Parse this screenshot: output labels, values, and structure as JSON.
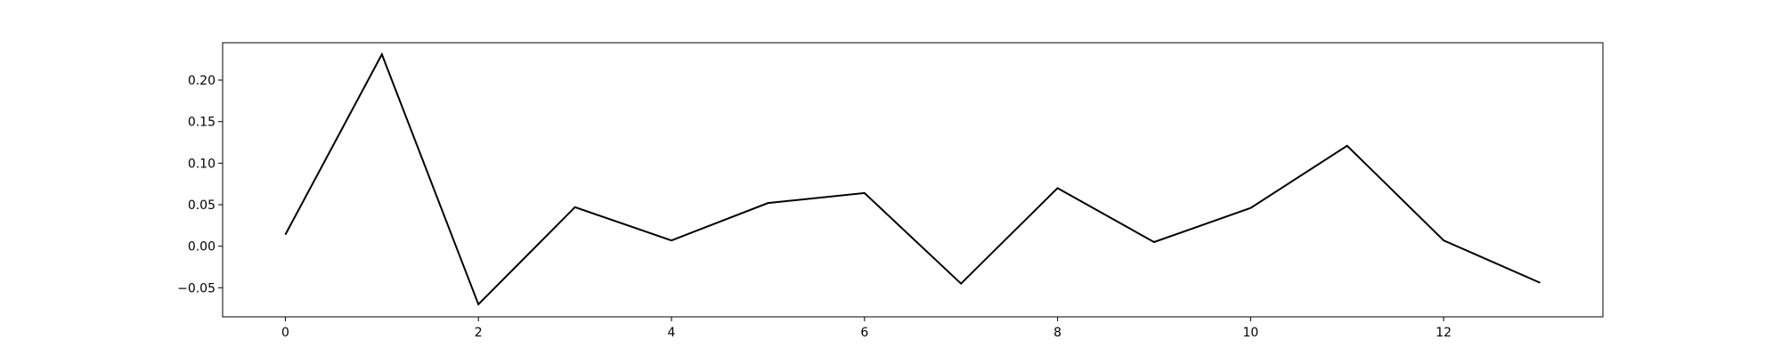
{
  "chart_data": {
    "type": "line",
    "title": "",
    "xlabel": "",
    "ylabel": "",
    "xlim": [
      -0.65,
      13.65
    ],
    "ylim": [
      -0.085,
      0.245
    ],
    "x_ticks": [
      0,
      2,
      4,
      6,
      8,
      10,
      12
    ],
    "x_tick_labels": [
      "0",
      "2",
      "4",
      "6",
      "8",
      "10",
      "12"
    ],
    "y_ticks": [
      -0.05,
      0.0,
      0.05,
      0.1,
      0.15,
      0.2
    ],
    "y_tick_labels": [
      "−0.05",
      "0.00",
      "0.05",
      "0.10",
      "0.15",
      "0.20"
    ],
    "grid": false,
    "legend": false,
    "series": [
      {
        "color": "#000000",
        "x": [
          0,
          1,
          2,
          3,
          4,
          5,
          6,
          7,
          8,
          9,
          10,
          11,
          12,
          13
        ],
        "values": [
          0.014,
          0.231,
          -0.07,
          0.047,
          0.007,
          0.052,
          0.064,
          -0.045,
          0.07,
          0.005,
          0.046,
          0.121,
          0.007,
          -0.044
        ]
      }
    ]
  }
}
